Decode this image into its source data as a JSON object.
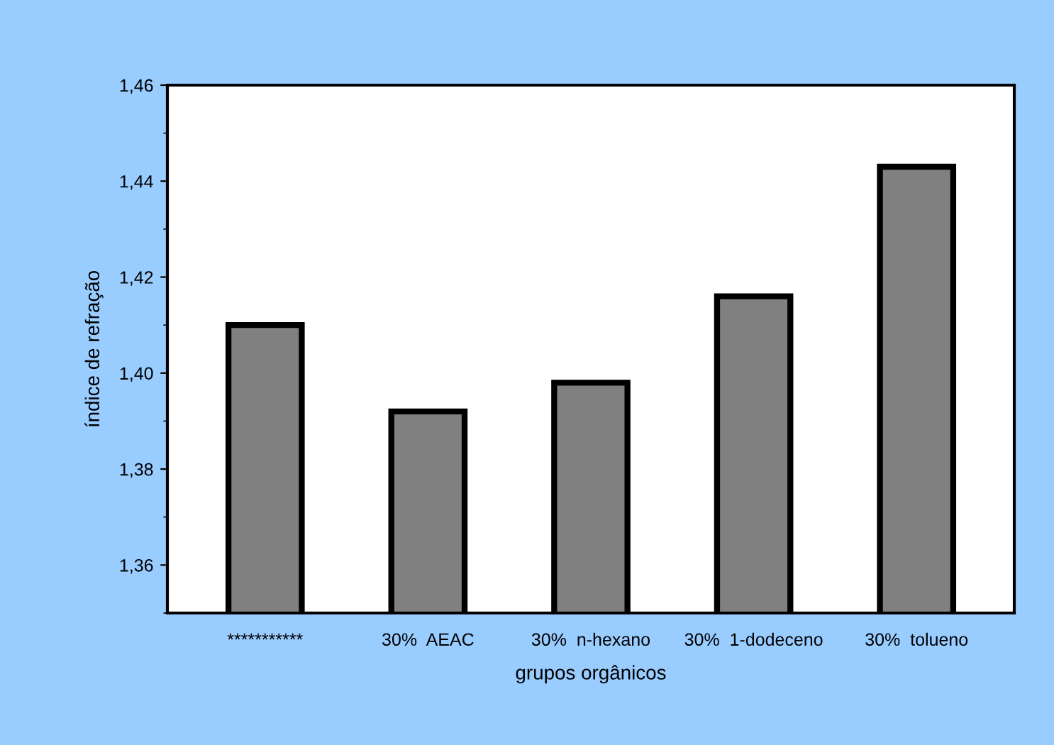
{
  "chart_data": {
    "type": "bar",
    "xlabel": "grupos orgânicos",
    "ylabel": "índice de refração",
    "categories": [
      "***********",
      "30%  AEAC",
      "30%  n-hexano",
      "30%  1-dodeceno",
      "30%  tolueno"
    ],
    "values": [
      1.41,
      1.392,
      1.398,
      1.416,
      1.443
    ],
    "color": "#808080",
    "ylim": [
      1.35,
      1.46
    ],
    "yticks": [
      {
        "value": 1.36,
        "label": "1,36"
      },
      {
        "value": 1.38,
        "label": "1,38"
      },
      {
        "value": 1.4,
        "label": "1,40"
      },
      {
        "value": 1.42,
        "label": "1,42"
      },
      {
        "value": 1.44,
        "label": "1,44"
      },
      {
        "value": 1.46,
        "label": "1,46"
      }
    ],
    "grid": false
  }
}
